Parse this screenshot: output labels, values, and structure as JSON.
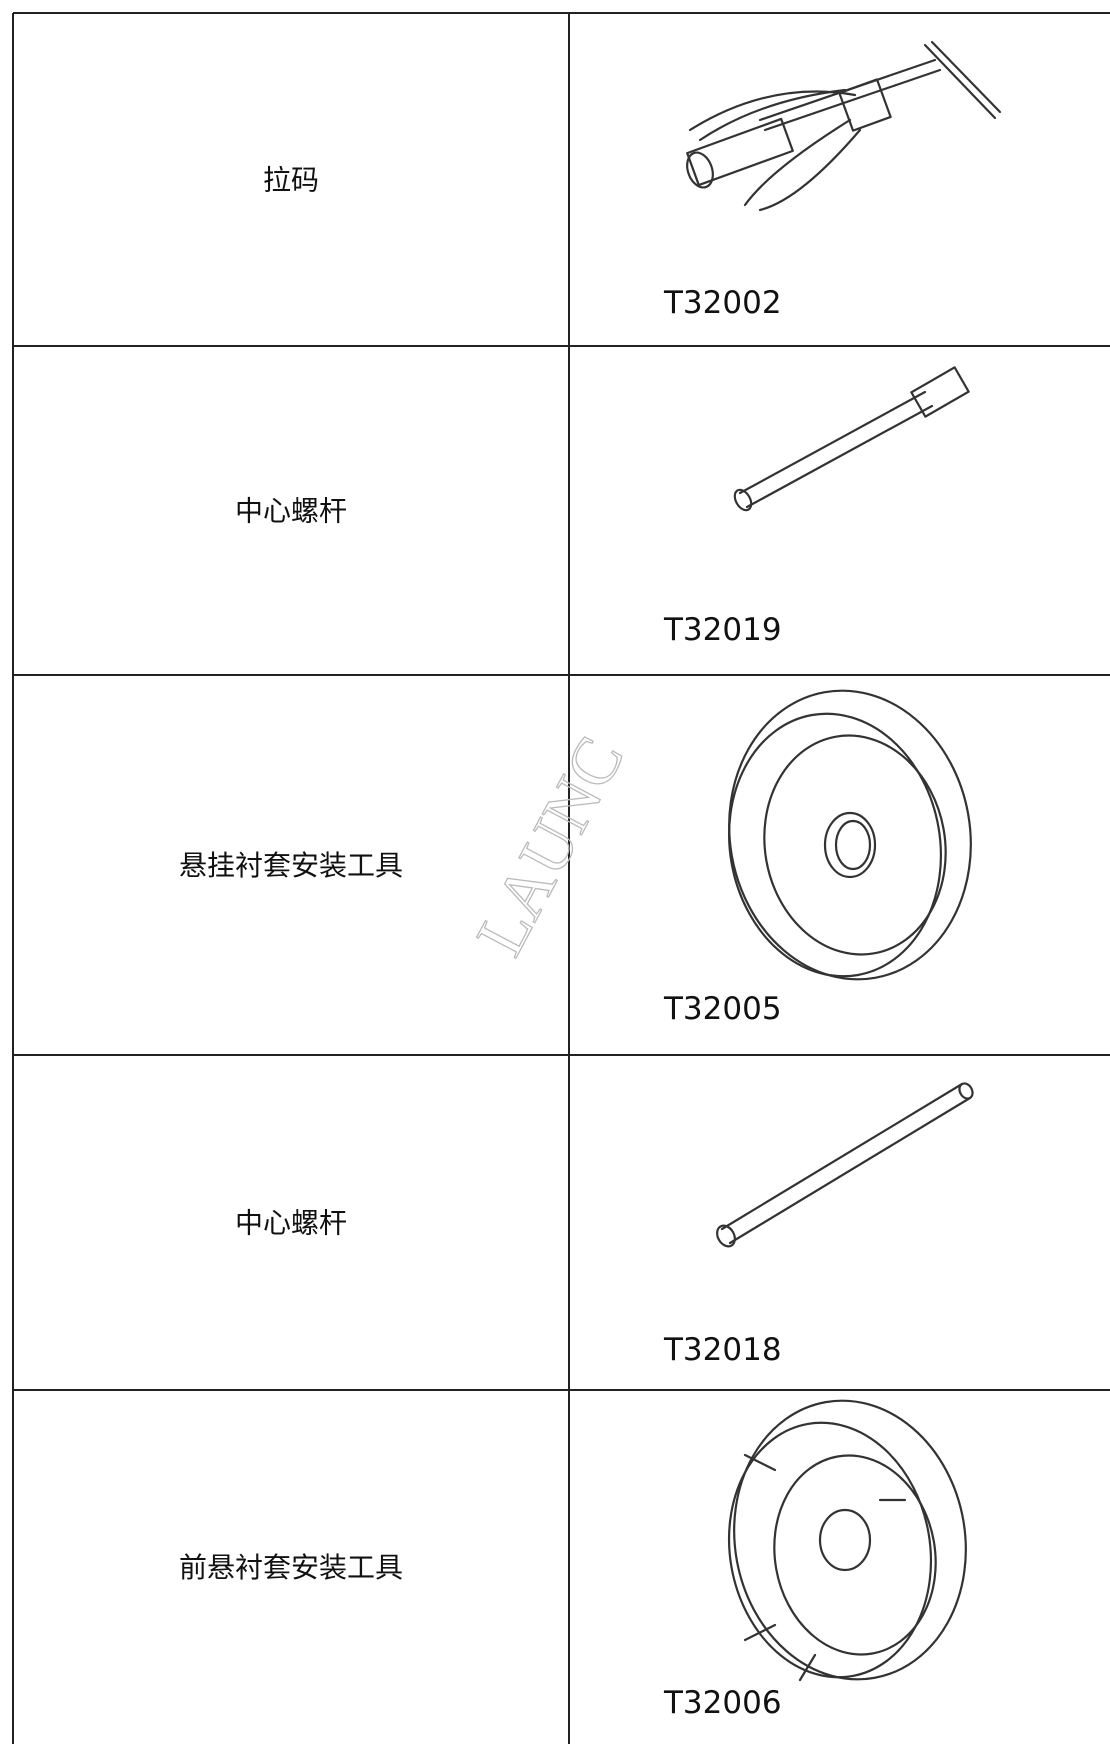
{
  "table": {
    "rows": [
      {
        "name": "拉码",
        "code": "T32002"
      },
      {
        "name": "中心螺杆",
        "code": "T32019"
      },
      {
        "name": "悬挂衬套安装工具",
        "code": "T32005"
      },
      {
        "name": "中心螺杆",
        "code": "T32018"
      },
      {
        "name": "前悬衬套安装工具",
        "code": "T32006"
      }
    ]
  },
  "watermark": "LAUNC"
}
